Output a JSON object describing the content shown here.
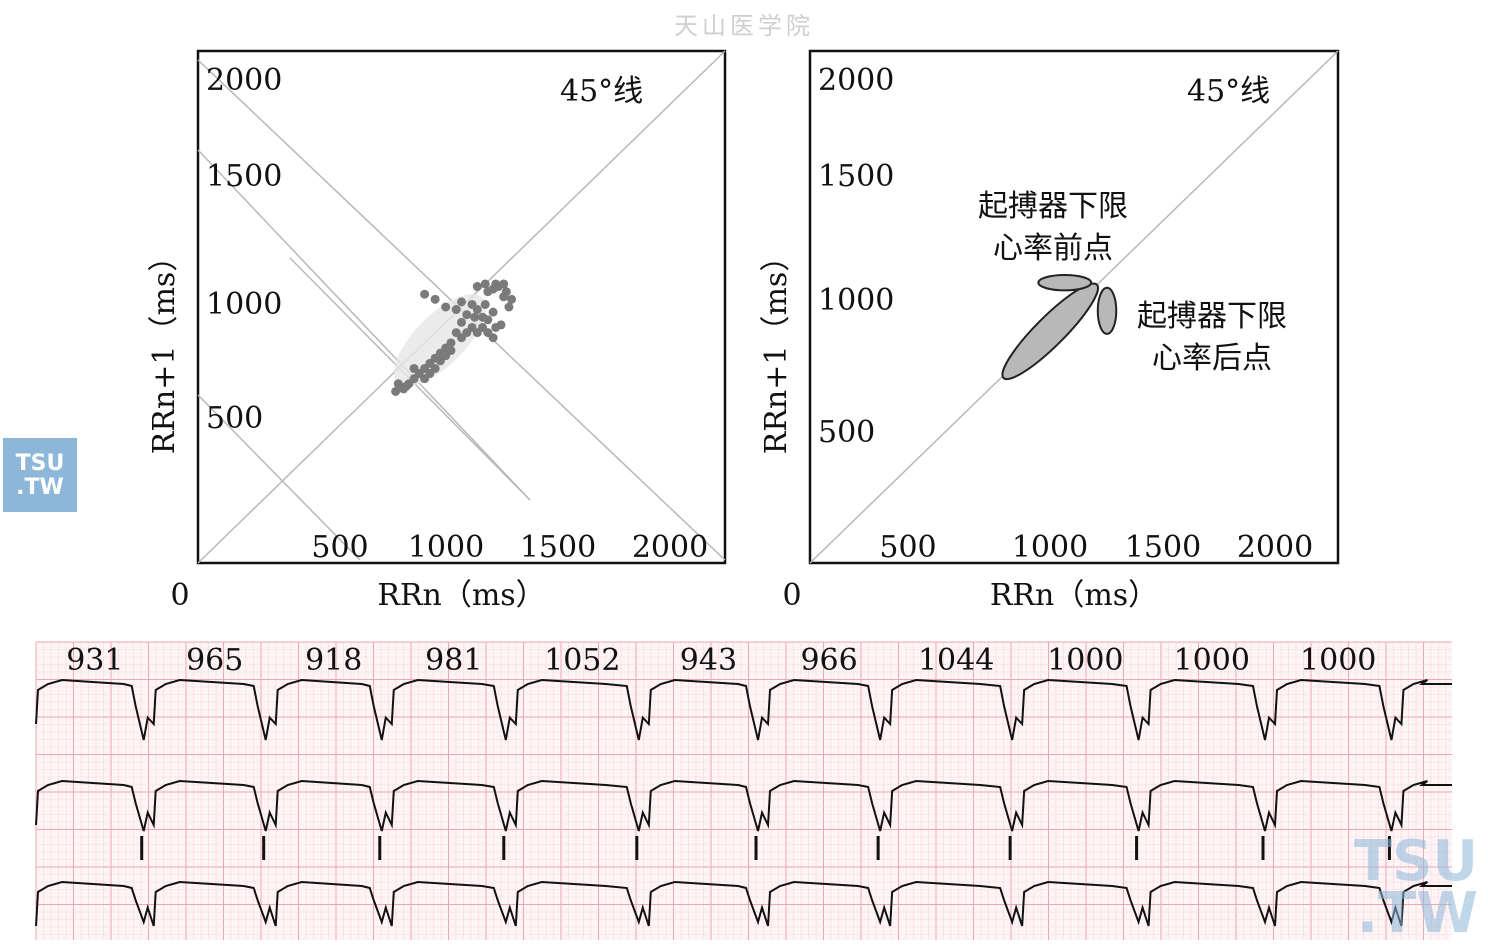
{
  "watermark_top": "天山医学院",
  "logos": {
    "left_line1": "TSU",
    "left_line2": ".TW",
    "right_line1": "TSU",
    "right_line2": ".TW"
  },
  "colors": {
    "axes": "#111111",
    "guide_line": "#b8b8b8",
    "cluster": "#7a7a7a",
    "ellipse_fill": "#b8b8b8",
    "ecg_grid_major": "#f0a6b4",
    "ecg_grid_minor": "#f9d7de",
    "ecg_trace": "#111111"
  },
  "chart_data": [
    {
      "type": "scatter",
      "panel": "left",
      "title": "",
      "xlabel": "RRn（ms）",
      "ylabel": "RRn+1（ms）",
      "origin_label": "0",
      "xlim": [
        0,
        2000
      ],
      "ylim": [
        0,
        2000
      ],
      "x_ticks": [
        "500",
        "1000",
        "1500",
        "2000"
      ],
      "y_ticks": [
        "500",
        "1000",
        "1500",
        "2000"
      ],
      "annotation": "45°线",
      "grid": false,
      "series": [
        {
          "points": [
            [
              860,
              1050
            ],
            [
              900,
              1030
            ],
            [
              940,
              1000
            ],
            [
              980,
              990
            ],
            [
              1000,
              1020
            ],
            [
              1020,
              970
            ],
            [
              1040,
              1010
            ],
            [
              1050,
              960
            ],
            [
              1060,
              990
            ],
            [
              1080,
              960
            ],
            [
              1090,
              1010
            ],
            [
              1100,
              950
            ],
            [
              1120,
              980
            ],
            [
              1130,
              920
            ],
            [
              1150,
              930
            ],
            [
              1100,
              1060
            ],
            [
              1120,
              1070
            ],
            [
              1140,
              1080
            ],
            [
              1160,
              1040
            ],
            [
              1170,
              1060
            ],
            [
              1180,
              1000
            ],
            [
              1190,
              1030
            ],
            [
              1000,
              880
            ],
            [
              980,
              900
            ],
            [
              960,
              860
            ],
            [
              940,
              840
            ],
            [
              920,
              820
            ],
            [
              900,
              800
            ],
            [
              880,
              780
            ],
            [
              860,
              760
            ],
            [
              840,
              740
            ],
            [
              820,
              720
            ],
            [
              800,
              700
            ],
            [
              780,
              680
            ],
            [
              860,
              720
            ],
            [
              880,
              740
            ],
            [
              900,
              760
            ],
            [
              920,
              790
            ],
            [
              940,
              810
            ],
            [
              960,
              830
            ],
            [
              1000,
              940
            ],
            [
              1020,
              900
            ],
            [
              1040,
              920
            ],
            [
              1060,
              900
            ],
            [
              1080,
              920
            ],
            [
              1100,
              900
            ],
            [
              1120,
              880
            ],
            [
              750,
              670
            ],
            [
              760,
              700
            ],
            [
              790,
              690
            ],
            [
              820,
              760
            ],
            [
              1060,
              1080
            ],
            [
              1090,
              1090
            ],
            [
              1130,
              1090
            ],
            [
              1160,
              1090
            ]
          ]
        }
      ]
    },
    {
      "type": "scatter",
      "panel": "right",
      "title": "",
      "xlabel": "RRn（ms）",
      "ylabel": "RRn+1（ms）",
      "origin_label": "0",
      "xlim": [
        0,
        2000
      ],
      "ylim": [
        0,
        2000
      ],
      "x_ticks": [
        "500",
        "1000",
        "1500",
        "2000"
      ],
      "y_ticks": [
        "500",
        "1000",
        "1500",
        "2000"
      ],
      "annotation": "45°线",
      "grid": false,
      "regions": [
        {
          "label": "",
          "center": [
            910,
            905
          ],
          "radius_along_diagonal": 250,
          "radius_across": 55
        },
        {
          "label": "起搏器下限心率前点",
          "label_lines": [
            "起搏器下限",
            "心率前点"
          ],
          "center": [
            965,
            1095
          ],
          "radius_x": 100,
          "radius_y": 30
        },
        {
          "label": "起搏器下限心率后点",
          "label_lines": [
            "起搏器下限",
            "心率后点"
          ],
          "center": [
            1125,
            985
          ],
          "radius_x": 35,
          "radius_y": 90
        }
      ]
    }
  ],
  "ecg": {
    "rr_labels": [
      "931",
      "965",
      "918",
      "981",
      "1052",
      "943",
      "966",
      "1044",
      "1000",
      "1000",
      "1000"
    ],
    "beats_ms": [
      0,
      931,
      1896,
      2814,
      3795,
      4847,
      5790,
      6756,
      7800,
      8800,
      9800,
      10800
    ],
    "strip_ms": 11200
  }
}
